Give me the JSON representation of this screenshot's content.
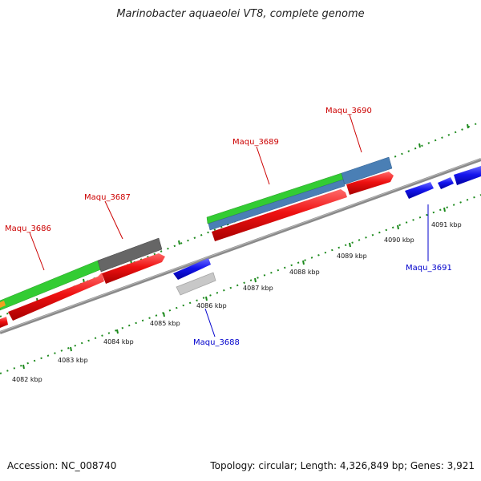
{
  "title": "Marinobacter aquaeolei VT8, complete genome",
  "footer": {
    "accession": "Accession: NC_008740",
    "summary": "Topology: circular; Length: 4,326,849 bp; Genes: 3,921"
  },
  "colors": {
    "backbone": "#8a8a8a",
    "ruler_ticks": "#1d8a1d",
    "forward_cds": "#ee1111",
    "reverse_cds": "#1111ee",
    "forward_label": "#cc0000",
    "reverse_label": "#0000cc",
    "blast_green": "#33cc33",
    "blast_steel": "#4a7fb5",
    "blast_dark": "#666666",
    "blast_light": "#c8c8c8"
  },
  "ruler_labels": [
    "4082 kbp",
    "4083 kbp",
    "4084 kbp",
    "4085 kbp",
    "4086 kbp",
    "4087 kbp",
    "4088 kbp",
    "4089 kbp",
    "4090 kbp",
    "4091 kbp"
  ],
  "gene_labels": [
    {
      "name": "Maqu_3686",
      "strand": "forward"
    },
    {
      "name": "Maqu_3687",
      "strand": "forward"
    },
    {
      "name": "Maqu_3688",
      "strand": "reverse"
    },
    {
      "name": "Maqu_3689",
      "strand": "forward"
    },
    {
      "name": "Maqu_3690",
      "strand": "forward"
    },
    {
      "name": "Maqu_3691",
      "strand": "reverse"
    }
  ]
}
